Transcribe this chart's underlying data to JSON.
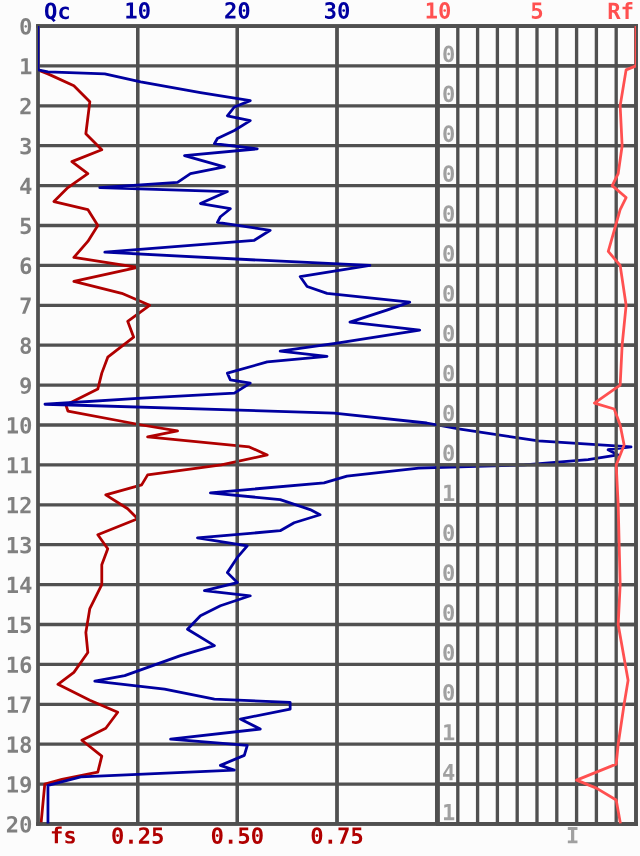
{
  "chart_data": [
    {
      "type": "line",
      "orientation": "horizontal",
      "xlabel": "fs",
      "x2label": "Qc",
      "xlim": [
        0,
        1.5
      ],
      "xticks": [
        {
          "value": 0.25,
          "label": "0.25"
        },
        {
          "value": 0.5,
          "label": "0.50"
        },
        {
          "value": 0.75,
          "label": "0.75"
        }
      ],
      "x2lim": [
        0,
        60
      ],
      "x2ticks": [
        10,
        20,
        30,
        {
          "value": 40,
          "label": null
        }
      ],
      "ylim": [
        20,
        0
      ],
      "yticks": [
        0,
        1,
        2,
        3,
        4,
        5,
        6,
        7,
        8,
        9,
        10,
        11,
        12,
        13,
        14,
        15,
        16,
        17,
        18,
        19,
        20
      ],
      "grid": true,
      "line_style": "solid",
      "marker": "none",
      "series": [
        {
          "color": "#0000a0",
          "axis": "x2",
          "x": [
            0,
            1.1,
            1.15,
            1.2,
            1.4,
            1.67,
            1.87,
            2.03,
            2.25,
            2.37,
            2.62,
            2.82,
            2.95,
            3.08,
            3.25,
            3.53,
            3.7,
            3.92,
            4.05,
            4.15,
            4.45,
            4.58,
            4.78,
            4.92,
            5.12,
            5.37,
            5.67,
            5.87,
            6.0,
            6.28,
            6.53,
            6.7,
            6.92,
            7.12,
            7.42,
            7.62,
            7.95,
            8.15,
            8.28,
            8.42,
            8.7,
            8.87,
            8.95,
            9.2,
            9.33,
            9.48,
            9.7,
            9.95,
            10.1,
            10.4,
            10.55,
            10.62,
            10.75,
            10.87,
            11.0,
            11.08,
            11.28,
            11.45,
            11.7,
            11.87,
            12.12,
            12.25,
            12.45,
            12.65,
            12.83,
            13.03,
            13.32,
            13.7,
            13.95,
            14.15,
            14.28,
            14.53,
            14.78,
            15.12,
            15.53,
            15.78,
            16.28,
            16.42,
            16.62,
            16.87,
            16.95,
            17.12,
            17.37,
            17.62,
            17.87,
            18.03,
            18.28,
            18.53,
            18.65,
            18.82,
            19.03,
            19.95
          ],
          "values": [
            0,
            0,
            1,
            6.7,
            10.3,
            16.3,
            21.3,
            19.7,
            19,
            21.3,
            19.7,
            18,
            17.7,
            22,
            14.7,
            18.7,
            15.3,
            14,
            6.2,
            19,
            16.3,
            19.3,
            18.3,
            18,
            23.3,
            21.7,
            6.7,
            22.3,
            33.3,
            26.3,
            27,
            29,
            37.3,
            35,
            31.3,
            38.3,
            30,
            24.3,
            29,
            23,
            19,
            19.3,
            21.3,
            19.7,
            10,
            0.7,
            29.7,
            39,
            42.2,
            50.2,
            59.5,
            57.2,
            58.2,
            55.2,
            48.8,
            38.2,
            31,
            28.7,
            17.3,
            24.3,
            27.3,
            28.3,
            25.7,
            24.3,
            16,
            21,
            20,
            19,
            20,
            16.7,
            21.3,
            18.3,
            16.3,
            15,
            17.7,
            14.3,
            8.7,
            5.7,
            12.7,
            17.7,
            25.3,
            25.3,
            20.3,
            22.3,
            13.3,
            21,
            20.7,
            18.3,
            19.7,
            4.3,
            1,
            1
          ]
        },
        {
          "color": "#b00000",
          "x": [
            0,
            1.1,
            1.2,
            1.5,
            1.9,
            2.3,
            2.7,
            3.1,
            3.4,
            3.7,
            4.05,
            4.4,
            4.6,
            5.0,
            5.4,
            5.8,
            6.05,
            6.4,
            6.7,
            7.0,
            7.4,
            7.8,
            8.3,
            8.7,
            9.1,
            9.5,
            9.65,
            10.0,
            10.15,
            10.3,
            10.55,
            10.75,
            11.0,
            11.25,
            11.5,
            11.75,
            12.1,
            12.35,
            12.75,
            13.1,
            13.5,
            14.0,
            14.6,
            15.2,
            15.7,
            16.2,
            16.5,
            16.9,
            17.2,
            17.6,
            17.9,
            18.3,
            18.7,
            18.88,
            19.0,
            19.95
          ],
          "values": [
            0,
            0,
            0.025,
            0.09,
            0.13,
            0.125,
            0.12,
            0.16,
            0.085,
            0.125,
            0.075,
            0.04,
            0.125,
            0.15,
            0.125,
            0.09,
            0.25,
            0.09,
            0.21,
            0.28,
            0.225,
            0.24,
            0.175,
            0.16,
            0.15,
            0.07,
            0.075,
            0.26,
            0.35,
            0.275,
            0.53,
            0.575,
            0.46,
            0.275,
            0.26,
            0.17,
            0.225,
            0.25,
            0.15,
            0.175,
            0.16,
            0.16,
            0.13,
            0.12,
            0.125,
            0.09,
            0.05,
            0.13,
            0.2,
            0.17,
            0.11,
            0.16,
            0.15,
            0.06,
            0.017,
            0.008
          ]
        }
      ]
    },
    {
      "type": "line",
      "orientation": "horizontal",
      "xlabel": "Rf",
      "xlim": [
        10,
        0
      ],
      "xticks": [
        10,
        {
          "value": 9,
          "label": null
        },
        {
          "value": 8,
          "label": null
        },
        {
          "value": 7,
          "label": null
        },
        {
          "value": 6,
          "label": null
        },
        5,
        {
          "value": 4,
          "label": null
        },
        {
          "value": 3,
          "label": null
        },
        {
          "value": 2,
          "label": null
        },
        {
          "value": 1,
          "label": null
        }
      ],
      "ylim": [
        20,
        0
      ],
      "yticks": [
        0,
        1,
        2,
        3,
        4,
        5,
        6,
        7,
        8,
        9,
        10,
        11,
        12,
        13,
        14,
        15,
        16,
        17,
        18,
        19,
        20
      ],
      "tick_labels": "x",
      "grid": true,
      "line_style": "solid",
      "marker": "none",
      "series": [
        {
          "color": "#ff5050",
          "x": [
            0,
            1.0,
            1.1,
            2.0,
            3.0,
            3.7,
            4.0,
            4.3,
            4.6,
            5.65,
            6.0,
            7.0,
            8.0,
            9.0,
            9.45,
            9.6,
            10.0,
            10.5,
            11.0,
            12.0,
            14.0,
            15.0,
            16.4,
            17.0,
            18.0,
            18.5,
            18.9,
            19.1,
            19.4,
            19.95
          ],
          "values": [
            0,
            0,
            0.5,
            0.8,
            0.7,
            0.9,
            1.2,
            0.5,
            0.8,
            1.4,
            0.8,
            0.5,
            0.7,
            0.8,
            2.1,
            1.1,
            0.8,
            0.6,
            1.0,
            0.9,
            0.8,
            0.9,
            0.4,
            0.6,
            0.9,
            1.0,
            3.0,
            2.0,
            1.0,
            0.8
          ]
        }
      ],
      "annotations": [
        "0",
        "0",
        "0",
        "0",
        "0",
        "0",
        "0",
        "0",
        "0",
        "0",
        "0",
        "1",
        "0",
        "0",
        "0",
        "0",
        "0",
        "1",
        "4",
        "1",
        "I"
      ]
    }
  ]
}
